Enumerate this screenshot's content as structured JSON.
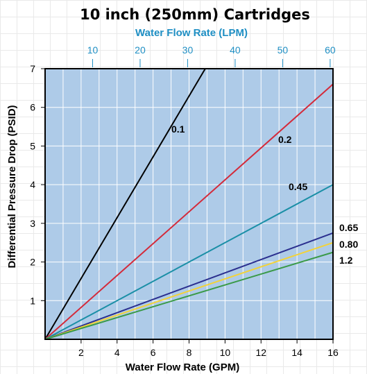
{
  "chart_data": {
    "type": "line",
    "title": "10 inch (250mm) Cartridges",
    "xlabel": "Water Flow Rate (GPM)",
    "ylabel": "Differential Pressure Drop (PSID)",
    "x2label": "Water Flow Rate (LPM)",
    "xlim": [
      0,
      16
    ],
    "ylim": [
      0,
      7
    ],
    "x2lim": [
      0,
      60.6
    ],
    "x_ticks": [
      "2",
      "4",
      "6",
      "8",
      "10",
      "12",
      "14",
      "16"
    ],
    "y_ticks": [
      "1",
      "2",
      "3",
      "4",
      "5",
      "6",
      "7"
    ],
    "x2_ticks": [
      "10",
      "20",
      "30",
      "40",
      "50",
      "60"
    ],
    "grid": true,
    "plot_background": "#aecbe8",
    "series": [
      {
        "name": "0.1",
        "color": "#000000",
        "x": [
          0,
          8.9
        ],
        "y": [
          0,
          7.0
        ]
      },
      {
        "name": "0.2",
        "color": "#d42a3a",
        "x": [
          0,
          16
        ],
        "y": [
          0,
          6.6
        ]
      },
      {
        "name": "0.45",
        "color": "#1a8fa6",
        "x": [
          0,
          16
        ],
        "y": [
          0,
          4.0
        ]
      },
      {
        "name": "0.65",
        "color": "#2b2f8f",
        "x": [
          0,
          16
        ],
        "y": [
          0,
          2.75
        ]
      },
      {
        "name": "0.80",
        "color": "#f2d23a",
        "x": [
          0,
          16
        ],
        "y": [
          0,
          2.5
        ]
      },
      {
        "name": "1.2",
        "color": "#3a9a48",
        "x": [
          0,
          16
        ],
        "y": [
          0,
          2.25
        ]
      }
    ]
  }
}
